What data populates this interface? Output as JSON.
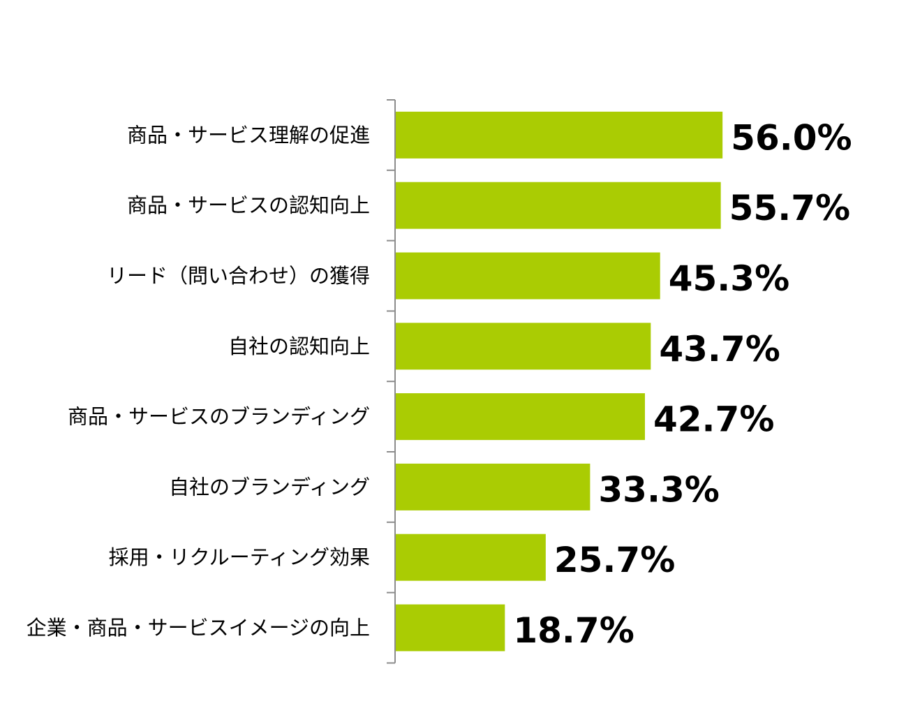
{
  "chart_data": {
    "type": "bar",
    "orientation": "horizontal",
    "categories": [
      "商品・サービス理解の促進",
      "商品・サービスの認知向上",
      "リード（問い合わせ）の獲得",
      "自社の認知向上",
      "商品・サービスのブランディング",
      "自社のブランディング",
      "採用・リクルーティング効果",
      "企業・商品・サービスイメージの向上"
    ],
    "values": [
      56.0,
      55.7,
      45.3,
      43.7,
      42.7,
      33.3,
      25.7,
      18.7
    ],
    "value_labels": [
      "56.0%",
      "55.7%",
      "45.3%",
      "43.7%",
      "42.7%",
      "33.3%",
      "25.7%",
      "18.7%"
    ],
    "xlim": [
      0,
      100
    ],
    "grid": false,
    "legend": "none",
    "bar_color": "#aacc03",
    "axis_color": "#8c8c8c"
  }
}
